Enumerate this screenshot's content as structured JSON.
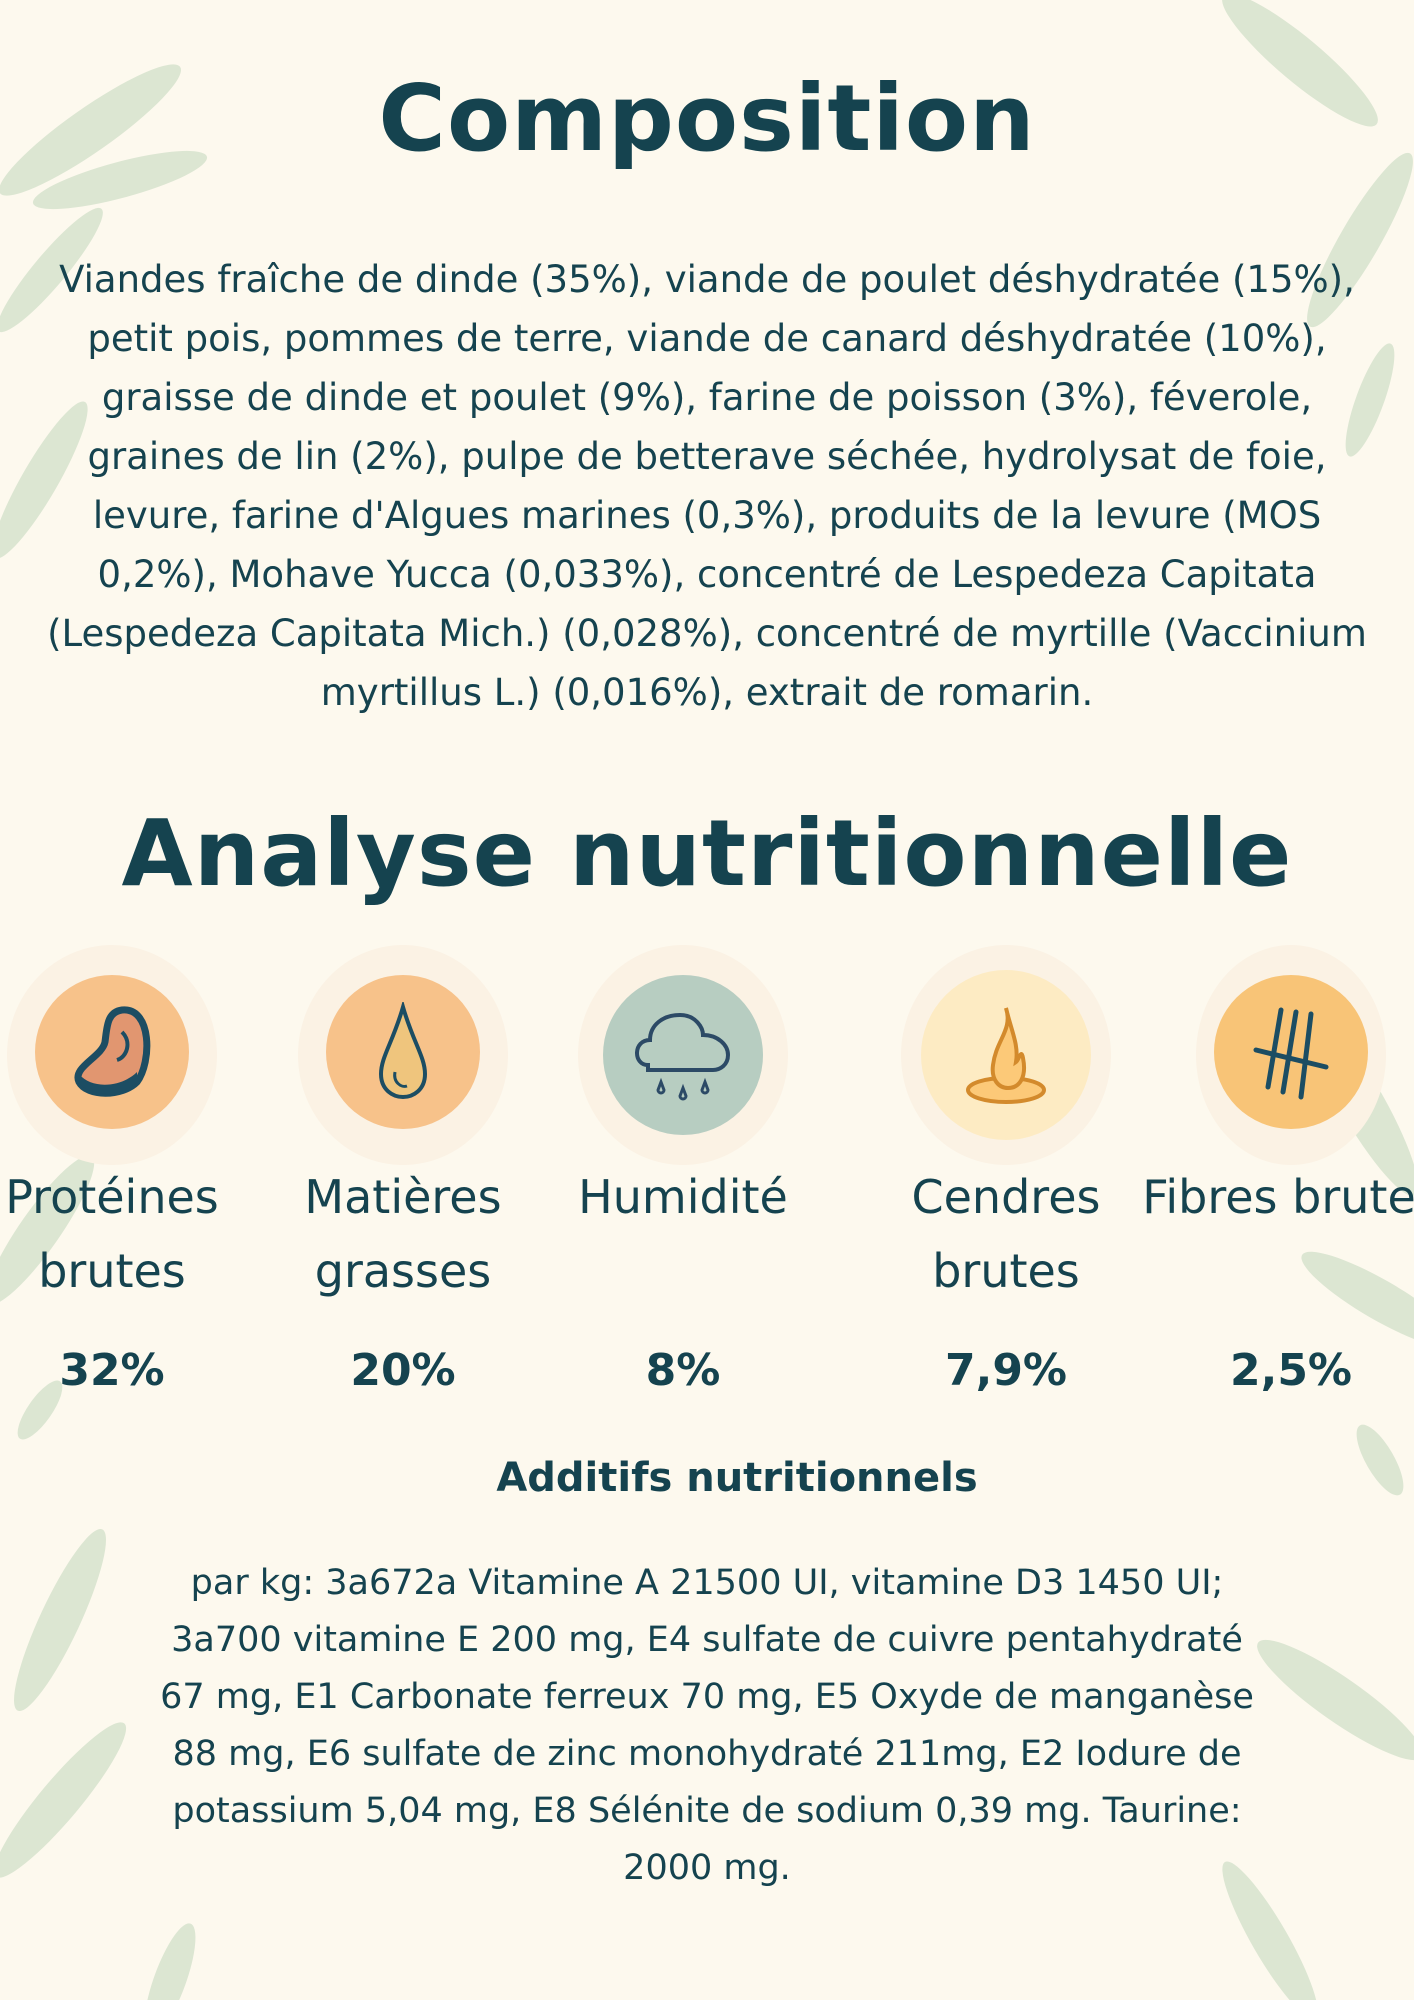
{
  "composition": {
    "title": "Composition",
    "text": "Viandes fraîche de dinde (35%), viande de poulet déshydratée (15%), petit pois, pommes de terre, viande de canard déshydratée (10%), graisse de dinde et poulet (9%), farine de poisson (3%), féverole, graines de lin (2%), pulpe de betterave séchée, hydrolysat de foie, levure, farine d'Algues marines (0,3%), produits de la levure (MOS 0,2%), Mohave Yucca (0,033%), concentré de Lespedeza Capitata (Lespedeza Capitata Mich.) (0,028%), concentré de myrtille (Vaccinium myrtillus L.) (0,016%), extrait de romarin."
  },
  "analyse": {
    "title": "Analyse nutritionnelle",
    "items": [
      {
        "label": "Protéines brutes",
        "value": "32%",
        "icon": "meat-icon",
        "color": "#f7c28a"
      },
      {
        "label": "Matières grasses",
        "value": "20%",
        "icon": "drop-icon",
        "color": "#f7c28a"
      },
      {
        "label": "Humidité",
        "value": "8%",
        "icon": "rain-cloud-icon",
        "color": "#b7cdc1"
      },
      {
        "label": "Cendres brutes",
        "value": "7,9%",
        "icon": "fire-icon",
        "color": "#fdebc3"
      },
      {
        "label": "Fibres brutes",
        "value": "2,5%",
        "icon": "tally-icon",
        "color": "#f8c477"
      }
    ]
  },
  "additifs": {
    "title": "Additifs nutritionnels",
    "text": "par kg: 3a672a Vitamine A 21500 UI, vitamine D3 1450 UI; 3a700 vitamine E 200 mg, E4 sulfate de cuivre pentahydraté 67 mg, E1 Carbonate ferreux 70 mg, E5 Oxyde de manganèse 88 mg, E6 sulfate de zinc monohydraté 211mg, E2 Iodure de potassium 5,04 mg, E8 Sélénite de sodium 0,39 mg. Taurine: 2000 mg."
  }
}
